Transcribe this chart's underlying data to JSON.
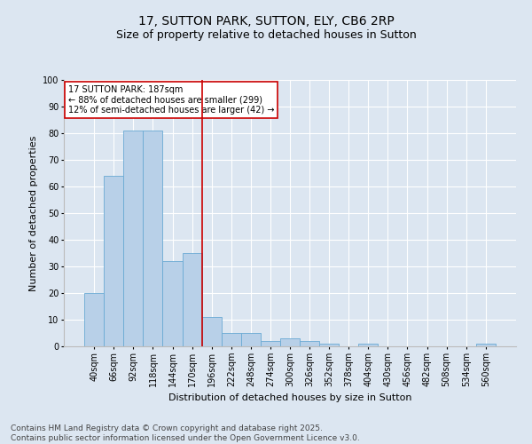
{
  "title1": "17, SUTTON PARK, SUTTON, ELY, CB6 2RP",
  "title2": "Size of property relative to detached houses in Sutton",
  "xlabel": "Distribution of detached houses by size in Sutton",
  "ylabel": "Number of detached properties",
  "categories": [
    "40sqm",
    "66sqm",
    "92sqm",
    "118sqm",
    "144sqm",
    "170sqm",
    "196sqm",
    "222sqm",
    "248sqm",
    "274sqm",
    "300sqm",
    "326sqm",
    "352sqm",
    "378sqm",
    "404sqm",
    "430sqm",
    "456sqm",
    "482sqm",
    "508sqm",
    "534sqm",
    "560sqm"
  ],
  "values": [
    20,
    64,
    81,
    81,
    32,
    35,
    11,
    5,
    5,
    2,
    3,
    2,
    1,
    0,
    1,
    0,
    0,
    0,
    0,
    0,
    1
  ],
  "bar_color": "#b8d0e8",
  "bar_edge_color": "#6aaad4",
  "background_color": "#dce6f1",
  "grid_color": "#ffffff",
  "red_line_color": "#cc0000",
  "annotation_text": "17 SUTTON PARK: 187sqm\n← 88% of detached houses are smaller (299)\n12% of semi-detached houses are larger (42) →",
  "annotation_box_color": "#ffffff",
  "annotation_box_edge": "#cc0000",
  "ylim": [
    0,
    100
  ],
  "yticks": [
    0,
    10,
    20,
    30,
    40,
    50,
    60,
    70,
    80,
    90,
    100
  ],
  "footer": "Contains HM Land Registry data © Crown copyright and database right 2025.\nContains public sector information licensed under the Open Government Licence v3.0.",
  "title_fontsize": 10,
  "subtitle_fontsize": 9,
  "axis_label_fontsize": 8,
  "tick_fontsize": 7,
  "footer_fontsize": 6.5,
  "annotation_fontsize": 7
}
